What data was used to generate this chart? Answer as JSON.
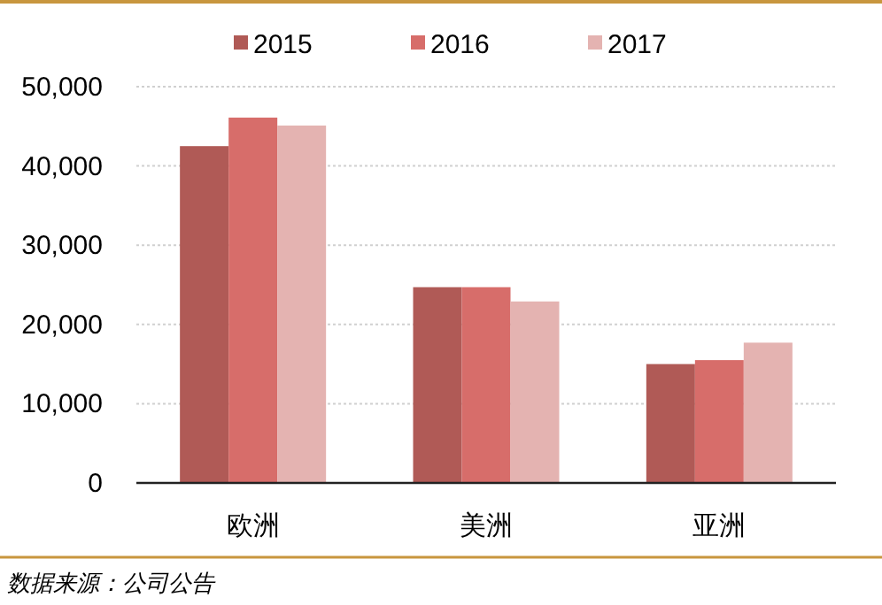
{
  "chart_data": {
    "type": "bar",
    "categories": [
      "欧洲",
      "美洲",
      "亚洲"
    ],
    "series": [
      {
        "name": "2015",
        "color": "#b05a56",
        "values": [
          42500,
          24700,
          15000
        ]
      },
      {
        "name": "2016",
        "color": "#d76d6a",
        "values": [
          46100,
          24700,
          15500
        ]
      },
      {
        "name": "2017",
        "color": "#e4b3b1",
        "values": [
          45100,
          22900,
          17700
        ]
      }
    ],
    "ylim": [
      0,
      50000
    ],
    "yticks": [
      {
        "value": 0,
        "label": "0"
      },
      {
        "value": 10000,
        "label": "10,000"
      },
      {
        "value": 20000,
        "label": "20,000"
      },
      {
        "value": 30000,
        "label": "30,000"
      },
      {
        "value": 40000,
        "label": "40,000"
      },
      {
        "value": 50000,
        "label": "50,000"
      }
    ],
    "grid": "y",
    "legend": "top",
    "annotations": [
      "数据来源：公司公告"
    ]
  }
}
